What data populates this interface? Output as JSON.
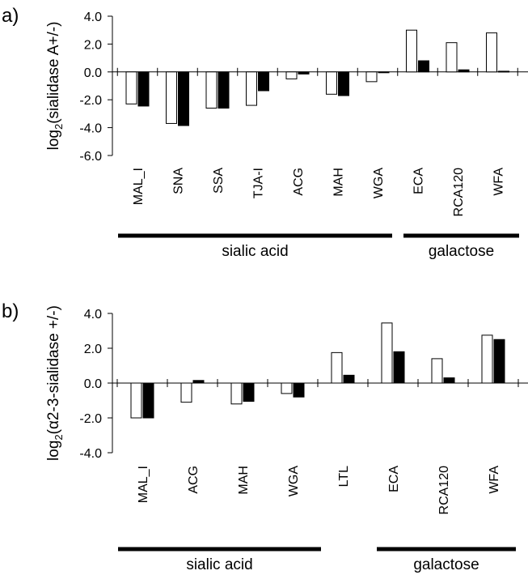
{
  "chart_data": [
    {
      "panel_label": "a)",
      "type": "bar",
      "title": "",
      "ylabel_prefix": "log",
      "ylabel_sub": "2",
      "ylabel_suffix": "(sialidase A+/-)",
      "xlabel": "",
      "ylim": [
        -6.0,
        4.0
      ],
      "yticks": [
        "4.0",
        "2.0",
        "0.0",
        "-2.0",
        "-4.0",
        "-6.0"
      ],
      "categories": [
        "MAL_I",
        "SNA",
        "SSA",
        "TJA-I",
        "ACG",
        "MAH",
        "WGA",
        "ECA",
        "RCA120",
        "WFA"
      ],
      "series": [
        {
          "name": "open bar",
          "fill": "#ffffff",
          "values": [
            -2.3,
            -3.7,
            -2.6,
            -2.4,
            -0.5,
            -1.6,
            -0.7,
            3.0,
            2.1,
            2.8
          ]
        },
        {
          "name": "filled bar",
          "fill": "#000000",
          "values": [
            -2.45,
            -3.85,
            -2.6,
            -1.35,
            -0.15,
            -1.7,
            -0.05,
            0.8,
            0.15,
            0.05
          ]
        }
      ],
      "groups": [
        {
          "label": "sialic acid",
          "from": 0,
          "to": 6
        },
        {
          "label": "galactose",
          "from": 7,
          "to": 9
        }
      ]
    },
    {
      "panel_label": "b)",
      "type": "bar",
      "title": "",
      "ylabel_prefix": "log",
      "ylabel_sub": "2",
      "ylabel_suffix": "(α2-3-sialidase +/-)",
      "xlabel": "",
      "ylim": [
        -4.0,
        4.0
      ],
      "yticks": [
        "4.0",
        "2.0",
        "0.0",
        "-2.0",
        "-4.0"
      ],
      "categories": [
        "MAL_I",
        "ACG",
        "MAH",
        "WGA",
        "LTL",
        "ECA",
        "RCA120",
        "WFA"
      ],
      "series": [
        {
          "name": "open bar",
          "fill": "#ffffff",
          "values": [
            -2.0,
            -1.1,
            -1.2,
            -0.6,
            1.75,
            3.45,
            1.4,
            2.75
          ]
        },
        {
          "name": "filled bar",
          "fill": "#000000",
          "values": [
            -2.0,
            0.15,
            -1.05,
            -0.8,
            0.45,
            1.8,
            0.3,
            2.5
          ]
        }
      ],
      "groups": [
        {
          "label": "sialic acid",
          "from": 0,
          "to": 3
        },
        {
          "label": "galactose",
          "from": 5,
          "to": 7
        }
      ]
    }
  ]
}
